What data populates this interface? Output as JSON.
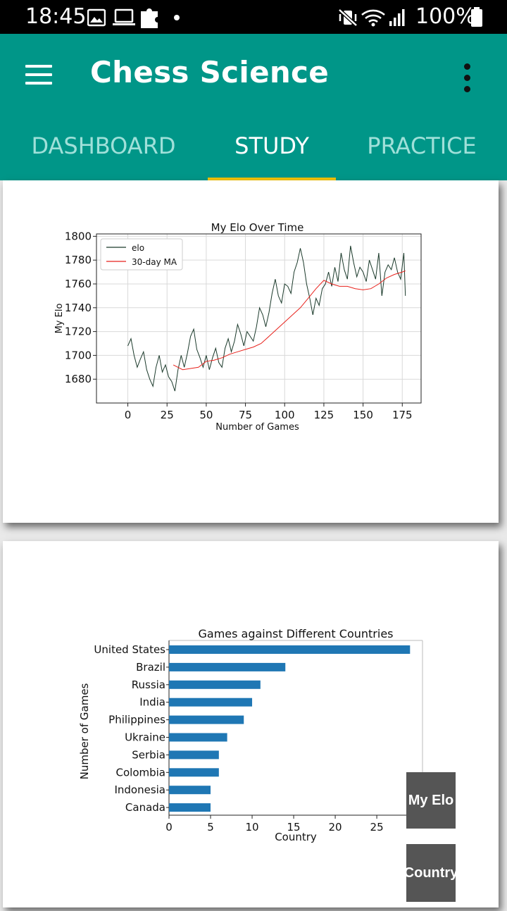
{
  "status_bar": {
    "time": "18:45",
    "battery": "100%",
    "icons": [
      "image-icon",
      "laptop-icon",
      "puzzle-icon",
      "dot-icon",
      "mute-vibrate-icon",
      "wifi-icon",
      "signal-icon",
      "battery-icon"
    ]
  },
  "app_bar": {
    "title": "Chess Science",
    "icons": [
      "menu-icon",
      "more-vert-icon"
    ],
    "color": "#009688"
  },
  "tabs": [
    {
      "label": "DASHBOARD"
    },
    {
      "label": "STUDY"
    },
    {
      "label": "PRACTICE"
    }
  ],
  "active_tab": "STUDY",
  "indicator_color": "#f2c200",
  "buttons": {
    "my_elo": "My Elo",
    "country": "Country"
  },
  "chart_data": [
    {
      "type": "line",
      "title": "My Elo Over Time",
      "xlabel": "Number of Games",
      "ylabel": "My Elo",
      "xlim": [
        -20,
        187
      ],
      "ylim": [
        1660,
        1802
      ],
      "xticks": [
        0,
        25,
        50,
        75,
        100,
        125,
        150,
        175
      ],
      "yticks": [
        1680,
        1700,
        1720,
        1740,
        1760,
        1780,
        1800
      ],
      "grid": true,
      "legend": "top-left",
      "series": [
        {
          "name": "elo",
          "color": "#1b3a2b",
          "x": [
            0,
            2,
            4,
            6,
            8,
            10,
            12,
            14,
            16,
            18,
            20,
            22,
            24,
            26,
            28,
            30,
            32,
            34,
            36,
            38,
            40,
            42,
            44,
            46,
            48,
            50,
            52,
            54,
            56,
            58,
            60,
            62,
            64,
            66,
            68,
            70,
            72,
            74,
            76,
            78,
            80,
            82,
            84,
            86,
            88,
            90,
            92,
            94,
            96,
            98,
            100,
            102,
            104,
            106,
            108,
            110,
            112,
            114,
            116,
            118,
            120,
            122,
            124,
            126,
            128,
            130,
            132,
            134,
            136,
            138,
            140,
            142,
            144,
            146,
            148,
            150,
            152,
            154,
            156,
            158,
            160,
            162,
            164,
            166,
            168,
            170,
            172,
            174,
            176,
            177
          ],
          "values": [
            1708,
            1714,
            1700,
            1690,
            1697,
            1703,
            1688,
            1680,
            1674,
            1690,
            1700,
            1686,
            1692,
            1682,
            1678,
            1670,
            1688,
            1700,
            1690,
            1702,
            1716,
            1722,
            1705,
            1698,
            1690,
            1700,
            1688,
            1698,
            1706,
            1694,
            1690,
            1706,
            1714,
            1703,
            1712,
            1726,
            1718,
            1708,
            1720,
            1716,
            1712,
            1724,
            1740,
            1734,
            1724,
            1736,
            1752,
            1764,
            1750,
            1744,
            1760,
            1758,
            1752,
            1770,
            1778,
            1790,
            1778,
            1760,
            1748,
            1734,
            1748,
            1742,
            1756,
            1760,
            1770,
            1758,
            1774,
            1762,
            1786,
            1772,
            1764,
            1792,
            1778,
            1766,
            1774,
            1770,
            1762,
            1780,
            1772,
            1764,
            1786,
            1750,
            1770,
            1776,
            1772,
            1782,
            1770,
            1764,
            1786,
            1750
          ]
        },
        {
          "name": "30-day MA",
          "color": "#e8221c",
          "x": [
            29,
            35,
            40,
            45,
            50,
            55,
            60,
            65,
            70,
            75,
            80,
            85,
            90,
            95,
            100,
            105,
            110,
            115,
            120,
            125,
            130,
            135,
            140,
            145,
            150,
            155,
            160,
            165,
            170,
            175,
            177
          ],
          "values": [
            1692,
            1688,
            1689,
            1690,
            1695,
            1696,
            1698,
            1701,
            1703,
            1705,
            1707,
            1710,
            1716,
            1722,
            1728,
            1734,
            1740,
            1748,
            1756,
            1763,
            1760,
            1758,
            1758,
            1756,
            1755,
            1756,
            1760,
            1765,
            1768,
            1770,
            1771
          ]
        }
      ]
    },
    {
      "type": "bar",
      "orientation": "horizontal",
      "title": "Games against Different Countries",
      "xlabel": "Country",
      "ylabel": "Number of Games",
      "xlim": [
        0,
        30.5
      ],
      "xticks": [
        0,
        5,
        10,
        15,
        20,
        25
      ],
      "bar_color": "#1f77b4",
      "categories": [
        "United States",
        "Brazil",
        "Russia",
        "India",
        "Philippines",
        "Ukraine",
        "Serbia",
        "Colombia",
        "Indonesia",
        "Canada"
      ],
      "values": [
        29,
        14,
        11,
        10,
        9,
        7,
        6,
        6,
        5,
        5
      ]
    }
  ]
}
